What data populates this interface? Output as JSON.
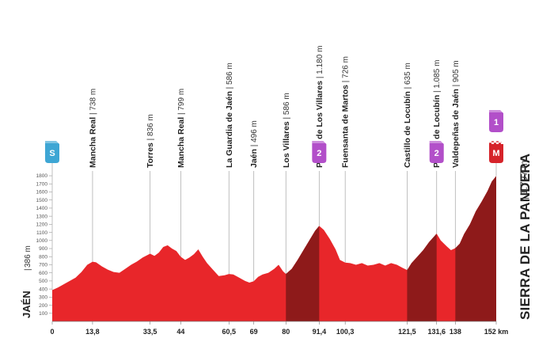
{
  "chart_data": {
    "type": "area",
    "title": "",
    "xlabel": "",
    "ylabel": "",
    "x_unit": "km",
    "ylim": [
      0,
      1900
    ],
    "yticks": [
      100,
      200,
      300,
      400,
      500,
      600,
      700,
      800,
      900,
      1000,
      1100,
      1200,
      1300,
      1400,
      1500,
      1600,
      1700,
      1800
    ],
    "xtick_labels": [
      "0",
      "13,8",
      "33,5",
      "44",
      "60,5",
      "69",
      "80",
      "91,4",
      "100,3",
      "121,5",
      "131,6",
      "138",
      "152 km"
    ],
    "xtick_values": [
      0,
      13.8,
      33.5,
      44,
      60.5,
      69,
      80,
      91.4,
      100.3,
      121.5,
      131.6,
      138,
      152
    ],
    "start": {
      "name": "JAÉN",
      "altitude": "386 m",
      "badge": "S"
    },
    "finish": {
      "name": "SIERRA DE LA PANDERA",
      "altitude": "1.797 m",
      "category": "1",
      "badge": "M"
    },
    "profile": [
      {
        "km": 0,
        "alt": 386
      },
      {
        "km": 2,
        "alt": 420
      },
      {
        "km": 4,
        "alt": 460
      },
      {
        "km": 6,
        "alt": 500
      },
      {
        "km": 8,
        "alt": 540
      },
      {
        "km": 10,
        "alt": 610
      },
      {
        "km": 12,
        "alt": 700
      },
      {
        "km": 13.8,
        "alt": 738
      },
      {
        "km": 15,
        "alt": 730
      },
      {
        "km": 17,
        "alt": 680
      },
      {
        "km": 19,
        "alt": 640
      },
      {
        "km": 21,
        "alt": 610
      },
      {
        "km": 23,
        "alt": 600
      },
      {
        "km": 25,
        "alt": 650
      },
      {
        "km": 27,
        "alt": 700
      },
      {
        "km": 29,
        "alt": 740
      },
      {
        "km": 31,
        "alt": 790
      },
      {
        "km": 33.5,
        "alt": 836
      },
      {
        "km": 35,
        "alt": 810
      },
      {
        "km": 36.5,
        "alt": 850
      },
      {
        "km": 38,
        "alt": 920
      },
      {
        "km": 39.5,
        "alt": 940
      },
      {
        "km": 41,
        "alt": 900
      },
      {
        "km": 42.5,
        "alt": 870
      },
      {
        "km": 44,
        "alt": 799
      },
      {
        "km": 45.5,
        "alt": 760
      },
      {
        "km": 47,
        "alt": 790
      },
      {
        "km": 48.5,
        "alt": 830
      },
      {
        "km": 50,
        "alt": 890
      },
      {
        "km": 51.5,
        "alt": 800
      },
      {
        "km": 53,
        "alt": 720
      },
      {
        "km": 55,
        "alt": 640
      },
      {
        "km": 57,
        "alt": 560
      },
      {
        "km": 59,
        "alt": 570
      },
      {
        "km": 60.5,
        "alt": 586
      },
      {
        "km": 62,
        "alt": 580
      },
      {
        "km": 64,
        "alt": 540
      },
      {
        "km": 66,
        "alt": 500
      },
      {
        "km": 67.5,
        "alt": 480
      },
      {
        "km": 69,
        "alt": 496
      },
      {
        "km": 70.5,
        "alt": 550
      },
      {
        "km": 72,
        "alt": 580
      },
      {
        "km": 74,
        "alt": 600
      },
      {
        "km": 76,
        "alt": 650
      },
      {
        "km": 77.5,
        "alt": 700
      },
      {
        "km": 79,
        "alt": 620
      },
      {
        "km": 80,
        "alt": 586
      },
      {
        "km": 82,
        "alt": 650
      },
      {
        "km": 84,
        "alt": 760
      },
      {
        "km": 86,
        "alt": 880
      },
      {
        "km": 88,
        "alt": 1000
      },
      {
        "km": 90,
        "alt": 1120
      },
      {
        "km": 91.4,
        "alt": 1180
      },
      {
        "km": 93,
        "alt": 1130
      },
      {
        "km": 95,
        "alt": 1020
      },
      {
        "km": 97,
        "alt": 890
      },
      {
        "km": 98.5,
        "alt": 760
      },
      {
        "km": 100.3,
        "alt": 726
      },
      {
        "km": 102,
        "alt": 720
      },
      {
        "km": 104,
        "alt": 700
      },
      {
        "km": 106,
        "alt": 720
      },
      {
        "km": 108,
        "alt": 690
      },
      {
        "km": 110,
        "alt": 700
      },
      {
        "km": 112,
        "alt": 720
      },
      {
        "km": 114,
        "alt": 690
      },
      {
        "km": 116,
        "alt": 720
      },
      {
        "km": 118,
        "alt": 700
      },
      {
        "km": 120,
        "alt": 660
      },
      {
        "km": 121.5,
        "alt": 635
      },
      {
        "km": 123,
        "alt": 720
      },
      {
        "km": 125,
        "alt": 800
      },
      {
        "km": 127,
        "alt": 880
      },
      {
        "km": 129,
        "alt": 980
      },
      {
        "km": 131.6,
        "alt": 1085
      },
      {
        "km": 133,
        "alt": 1000
      },
      {
        "km": 135,
        "alt": 930
      },
      {
        "km": 136.5,
        "alt": 880
      },
      {
        "km": 138,
        "alt": 905
      },
      {
        "km": 139.5,
        "alt": 960
      },
      {
        "km": 141,
        "alt": 1080
      },
      {
        "km": 143,
        "alt": 1200
      },
      {
        "km": 145,
        "alt": 1360
      },
      {
        "km": 147,
        "alt": 1480
      },
      {
        "km": 149,
        "alt": 1610
      },
      {
        "km": 150.5,
        "alt": 1730
      },
      {
        "km": 152,
        "alt": 1797
      }
    ],
    "climbs": [
      {
        "from_km": 80,
        "to_km": 91.4,
        "category": "2"
      },
      {
        "from_km": 121.5,
        "to_km": 131.6,
        "category": "2"
      },
      {
        "from_km": 138,
        "to_km": 152,
        "category": "1"
      }
    ],
    "waypoints": [
      {
        "km": 13.8,
        "name": "Mancha Real",
        "alt": "738 m"
      },
      {
        "km": 33.5,
        "name": "Torres",
        "alt": "836 m"
      },
      {
        "km": 44,
        "name": "Mancha Real",
        "alt": "799 m"
      },
      {
        "km": 60.5,
        "name": "La Guardia de Jaén",
        "alt": "586 m"
      },
      {
        "km": 69,
        "name": "Jaén",
        "alt": "496 m"
      },
      {
        "km": 80,
        "name": "Los Villares",
        "alt": "586 m"
      },
      {
        "km": 91.4,
        "name": "Puerto de Los Villares",
        "alt": "1.180 m",
        "climb_badge": "2"
      },
      {
        "km": 100.3,
        "name": "Fuensanta de Martos",
        "alt": "726 m"
      },
      {
        "km": 121.5,
        "name": "Castillo de Locubín",
        "alt": "635 m"
      },
      {
        "km": 131.6,
        "name": "Puerto de Locubín",
        "alt": "1.085 m",
        "climb_badge": "2"
      },
      {
        "km": 138,
        "name": "Valdepeñas de Jaén",
        "alt": "905 m"
      }
    ],
    "colors": {
      "profile_fill": "#e8262a",
      "climb_fill": "#8e1a1a",
      "climb_badge": "#b24fc9",
      "start_badge": "#3ea6d4",
      "finish_badge": "#d6232a",
      "guide_line": "#b0b0b0"
    }
  }
}
